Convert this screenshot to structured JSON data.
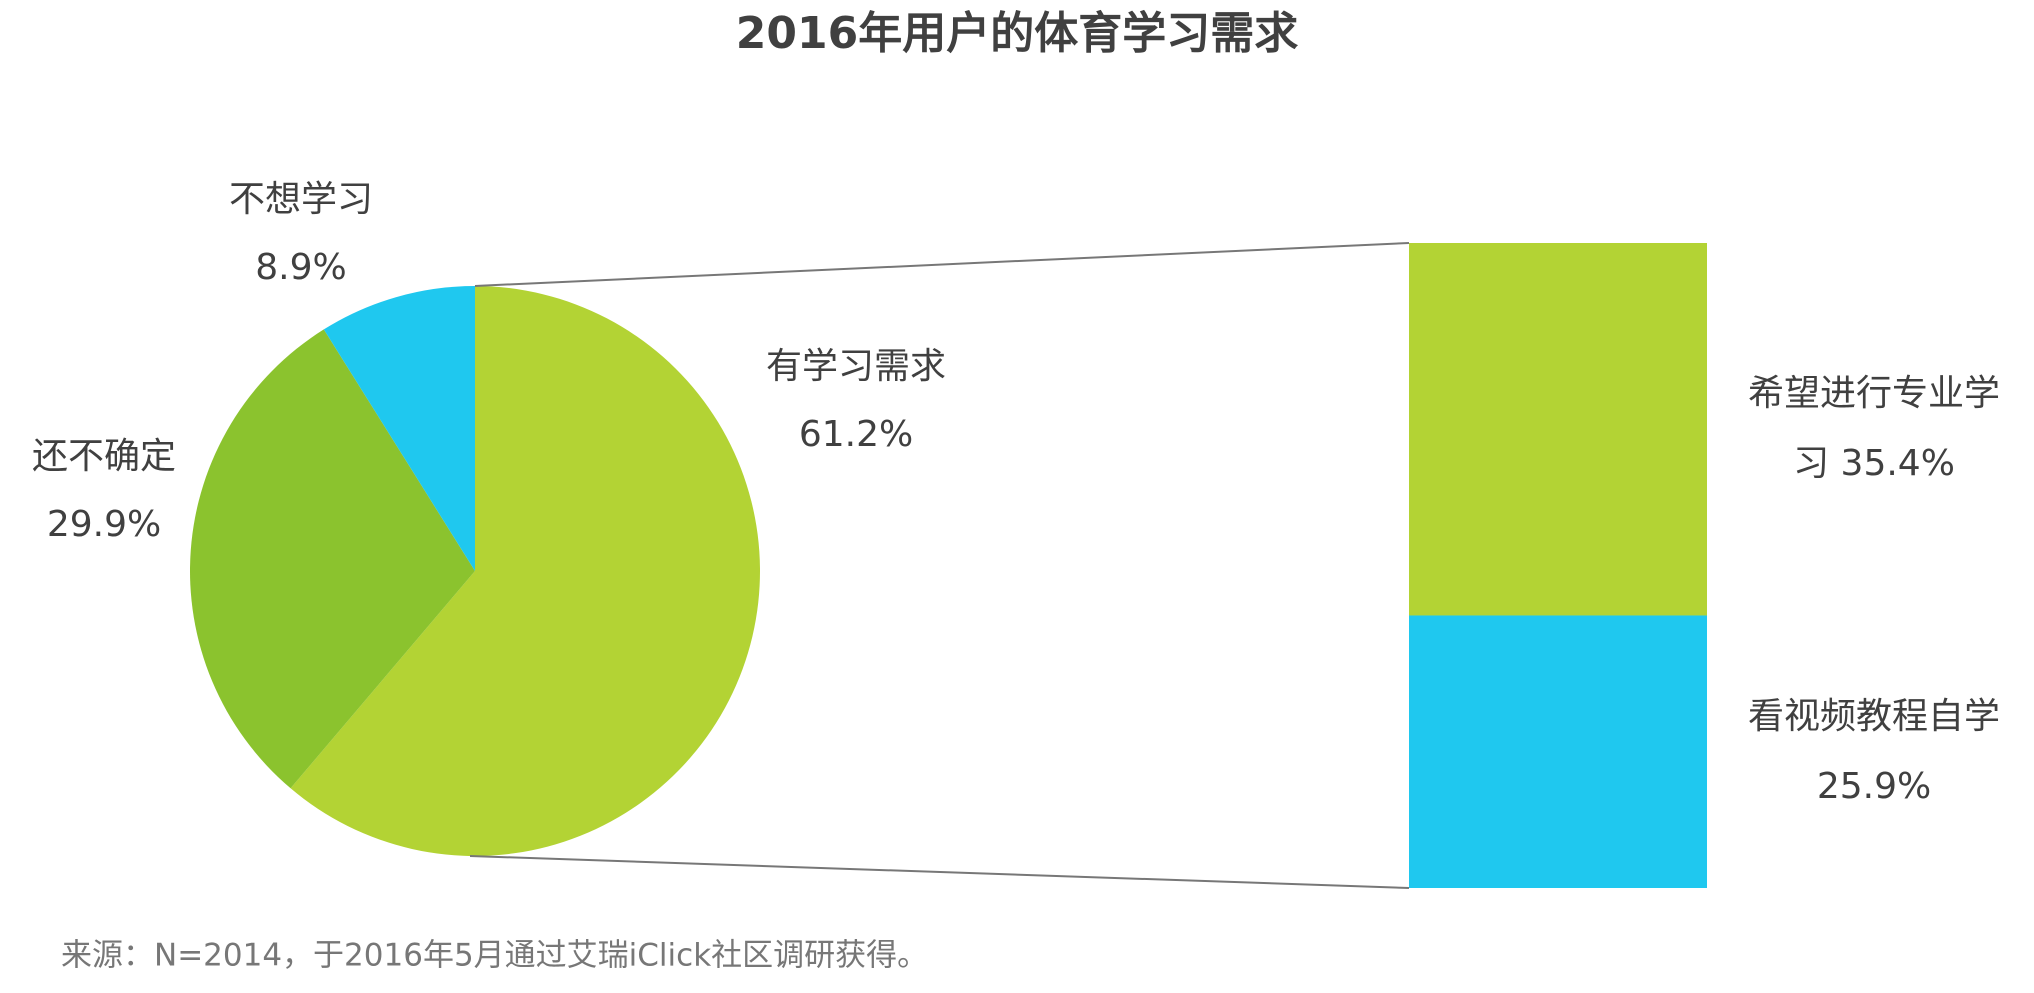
{
  "chart_data": {
    "type": "pie-of-bar",
    "title": "2016年用户的体育学习需求",
    "categories": [
      "有学习需求",
      "还不确定",
      "不想学习"
    ],
    "values": [
      61.2,
      29.9,
      8.9
    ],
    "value_labels": [
      "61.2%",
      "29.9%",
      "8.9%"
    ],
    "colors": [
      "#b3d334",
      "#8bc32e",
      "#1fc8ef"
    ],
    "breakdown": {
      "categories": [
        "希望进行专业学习",
        "看视频教程自学"
      ],
      "values": [
        35.4,
        25.9
      ],
      "value_labels": [
        "35.4%",
        "25.9%"
      ],
      "colors": [
        "#b3d334",
        "#1fc8ef"
      ]
    },
    "source": "来源：N=2014，于2016年5月通过艾瑞iClick社区调研获得。"
  }
}
